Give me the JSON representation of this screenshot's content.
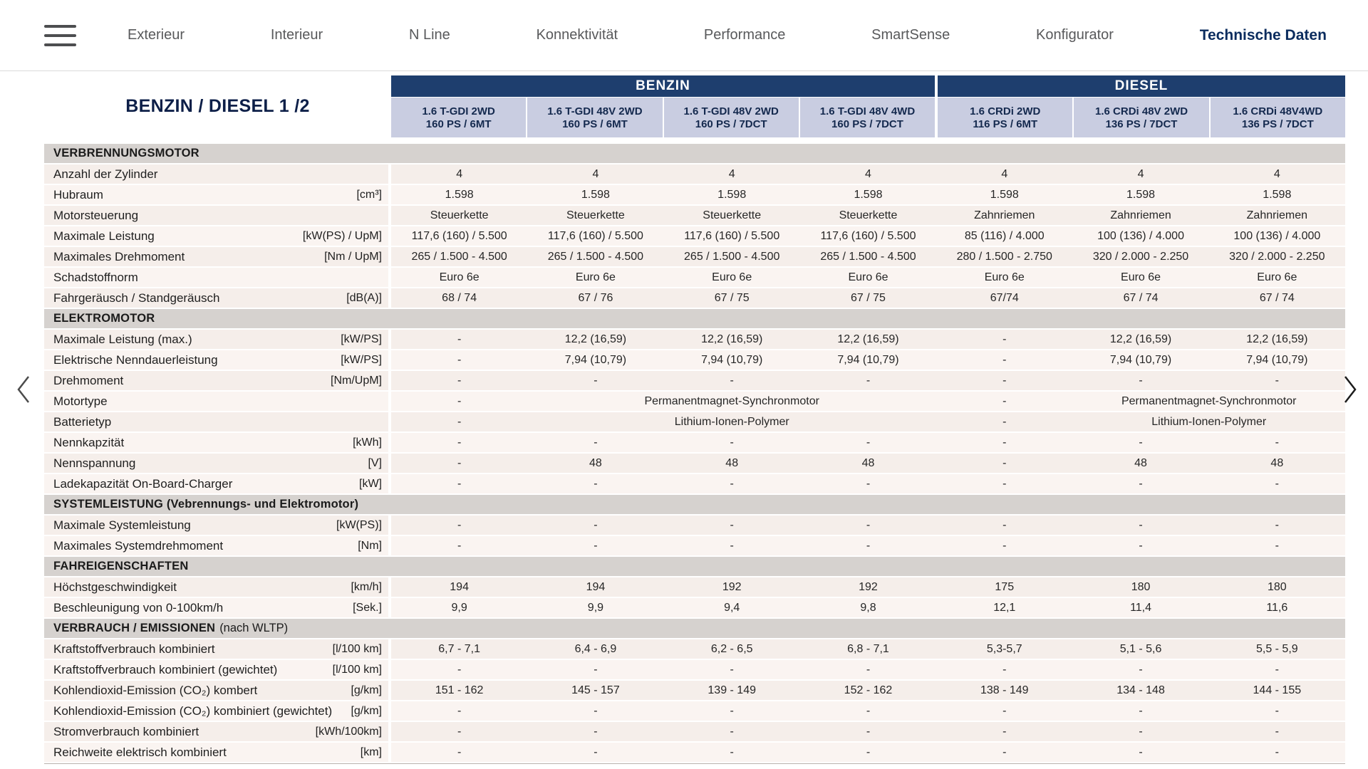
{
  "nav": {
    "items": [
      "Exterieur",
      "Interieur",
      "N Line",
      "Konnektivität",
      "Performance",
      "SmartSense",
      "Konfigurator",
      "Technische Daten"
    ],
    "active": "Technische Daten"
  },
  "icons": {
    "menu": "hamburger",
    "prev": "chevron-left",
    "next": "chevron-right"
  },
  "colors": {
    "group_header_bg": "#1e3e6e",
    "column_header_bg": "#c9cde1",
    "section_header_bg": "#d6d2cf",
    "row_bg": "#f6efeb",
    "active_nav": "#0b2c5e"
  },
  "table": {
    "title": "BENZIN / DIESEL 1 /2",
    "groups": [
      {
        "label": "BENZIN",
        "span": 4
      },
      {
        "label": "DIESEL",
        "span": 3
      }
    ],
    "columns": [
      {
        "model": "1.6 T-GDI 2WD",
        "power": "160 PS / 6MT"
      },
      {
        "model": "1.6 T-GDI 48V 2WD",
        "power": "160 PS / 6MT"
      },
      {
        "model": "1.6 T-GDI 48V 2WD",
        "power": "160 PS / 7DCT"
      },
      {
        "model": "1.6 T-GDI 48V 4WD",
        "power": "160 PS / 7DCT"
      },
      {
        "model": "1.6 CRDi 2WD",
        "power": "116 PS / 6MT"
      },
      {
        "model": "1.6 CRDi 48V 2WD",
        "power": "136 PS / 7DCT"
      },
      {
        "model": "1.6 CRDi 48V4WD",
        "power": "136 PS / 7DCT"
      }
    ],
    "sections": [
      {
        "header": "VERBRENNUNGSMOTOR",
        "suffix": "",
        "rows": [
          {
            "label": "Anzahl der Zylinder",
            "unit": "",
            "values": [
              "4",
              "4",
              "4",
              "4",
              "4",
              "4",
              "4"
            ]
          },
          {
            "label": "Hubraum",
            "unit": "[cm³]",
            "values": [
              "1.598",
              "1.598",
              "1.598",
              "1.598",
              "1.598",
              "1.598",
              "1.598"
            ]
          },
          {
            "label": "Motorsteuerung",
            "unit": "",
            "values": [
              "Steuerkette",
              "Steuerkette",
              "Steuerkette",
              "Steuerkette",
              "Zahnriemen",
              "Zahnriemen",
              "Zahnriemen"
            ]
          },
          {
            "label": "Maximale Leistung",
            "unit": "[kW(PS) / UpM]",
            "values": [
              "117,6 (160) / 5.500",
              "117,6 (160) / 5.500",
              "117,6 (160) / 5.500",
              "117,6 (160) / 5.500",
              "85 (116) / 4.000",
              "100 (136) / 4.000",
              "100 (136) / 4.000"
            ]
          },
          {
            "label": "Maximales Drehmoment",
            "unit": "[Nm / UpM]",
            "values": [
              "265 / 1.500 - 4.500",
              "265 / 1.500 - 4.500",
              "265 / 1.500 - 4.500",
              "265 / 1.500 - 4.500",
              "280 / 1.500 - 2.750",
              "320 / 2.000 - 2.250",
              "320 / 2.000 - 2.250"
            ]
          },
          {
            "label": "Schadstoffnorm",
            "unit": "",
            "values": [
              "Euro 6e",
              "Euro 6e",
              "Euro 6e",
              "Euro 6e",
              "Euro 6e",
              "Euro 6e",
              "Euro 6e"
            ]
          },
          {
            "label": "Fahrgeräusch / Standgeräusch",
            "unit": "[dB(A)]",
            "values": [
              "68 / 74",
              "67 / 76",
              "67 / 75",
              "67 / 75",
              "67/74",
              "67 / 74",
              "67 / 74"
            ]
          }
        ]
      },
      {
        "header": "ELEKTROMOTOR",
        "suffix": "",
        "rows": [
          {
            "label": "Maximale Leistung (max.)",
            "unit": "[kW/PS]",
            "values": [
              "-",
              "12,2 (16,59)",
              "12,2 (16,59)",
              "12,2 (16,59)",
              "-",
              "12,2 (16,59)",
              "12,2 (16,59)"
            ]
          },
          {
            "label": "Elektrische Nenndauerleistung",
            "unit": "[kW/PS]",
            "values": [
              "-",
              "7,94 (10,79)",
              "7,94 (10,79)",
              "7,94 (10,79)",
              "-",
              "7,94 (10,79)",
              "7,94 (10,79)"
            ]
          },
          {
            "label": "Drehmoment",
            "unit": "[Nm/UpM]",
            "values": [
              "-",
              "-",
              "-",
              "-",
              "-",
              "-",
              "-"
            ]
          },
          {
            "label": "Motortype",
            "unit": "",
            "values": [
              "-",
              {
                "text": "Permanentmagnet-Synchronmotor",
                "span": 3
              },
              "-",
              {
                "text": "Permanentmagnet-Synchronmotor",
                "span": 2
              }
            ]
          },
          {
            "label": "Batterietyp",
            "unit": "",
            "values": [
              "-",
              {
                "text": "Lithium-Ionen-Polymer",
                "span": 3
              },
              "-",
              {
                "text": "Lithium-Ionen-Polymer",
                "span": 2
              }
            ]
          },
          {
            "label": "Nennkapzität",
            "unit": "[kWh]",
            "values": [
              "-",
              "-",
              "-",
              "-",
              "-",
              "-",
              "-"
            ]
          },
          {
            "label": "Nennspannung",
            "unit": "[V]",
            "values": [
              "-",
              "48",
              "48",
              "48",
              "-",
              "48",
              "48"
            ]
          },
          {
            "label": "Ladekapazität On-Board-Charger",
            "unit": "[kW]",
            "values": [
              "-",
              "-",
              "-",
              "-",
              "-",
              "-",
              "-"
            ]
          }
        ]
      },
      {
        "header": "SYSTEMLEISTUNG (Vebrennungs- und Elektromotor)",
        "suffix": "",
        "rows": [
          {
            "label": "Maximale Systemleistung",
            "unit": "[kW(PS)]",
            "values": [
              "-",
              "-",
              "-",
              "-",
              "-",
              "-",
              "-"
            ]
          },
          {
            "label": "Maximales Systemdrehmoment",
            "unit": "[Nm]",
            "values": [
              "-",
              "-",
              "-",
              "-",
              "-",
              "-",
              "-"
            ]
          }
        ]
      },
      {
        "header": "FAHREIGENSCHAFTEN",
        "suffix": "",
        "rows": [
          {
            "label": "Höchstgeschwindigkeit",
            "unit": "[km/h]",
            "values": [
              "194",
              "194",
              "192",
              "192",
              "175",
              "180",
              "180"
            ]
          },
          {
            "label": "Beschleunigung von 0-100km/h",
            "unit": "[Sek.]",
            "values": [
              "9,9",
              "9,9",
              "9,4",
              "9,8",
              "12,1",
              "11,4",
              "11,6"
            ]
          }
        ]
      },
      {
        "header": "VERBRAUCH / EMISSIONEN",
        "suffix": "(nach WLTP)",
        "rows": [
          {
            "label": "Kraftstoffverbrauch kombiniert",
            "unit": "[l/100 km]",
            "values": [
              "6,7 - 7,1",
              "6,4 - 6,9",
              "6,2 - 6,5",
              "6,8 - 7,1",
              "5,3-5,7",
              "5,1 - 5,6",
              "5,5 - 5,9"
            ]
          },
          {
            "label": "Kraftstoffverbrauch kombiniert (gewichtet)",
            "unit": "[l/100 km]",
            "values": [
              "-",
              "-",
              "-",
              "-",
              "-",
              "-",
              "-"
            ]
          },
          {
            "label": "Kohlendioxid-Emission (CO₂) kombert",
            "unit": "[g/km]",
            "values": [
              "151 - 162",
              "145 - 157",
              "139 - 149",
              "152 - 162",
              "138 - 149",
              "134 - 148",
              "144 - 155"
            ]
          },
          {
            "label": "Kohlendioxid-Emission (CO₂) kombiniert (gewichtet)",
            "unit": "[g/km]",
            "values": [
              "-",
              "-",
              "-",
              "-",
              "-",
              "-",
              "-"
            ]
          },
          {
            "label": "Stromverbrauch kombiniert",
            "unit": "[kWh/100km]",
            "values": [
              "-",
              "-",
              "-",
              "-",
              "-",
              "-",
              "-"
            ]
          },
          {
            "label": "Reichweite elektrisch kombiniert",
            "unit": "[km]",
            "values": [
              "-",
              "-",
              "-",
              "-",
              "-",
              "-",
              "-"
            ]
          }
        ]
      }
    ]
  }
}
